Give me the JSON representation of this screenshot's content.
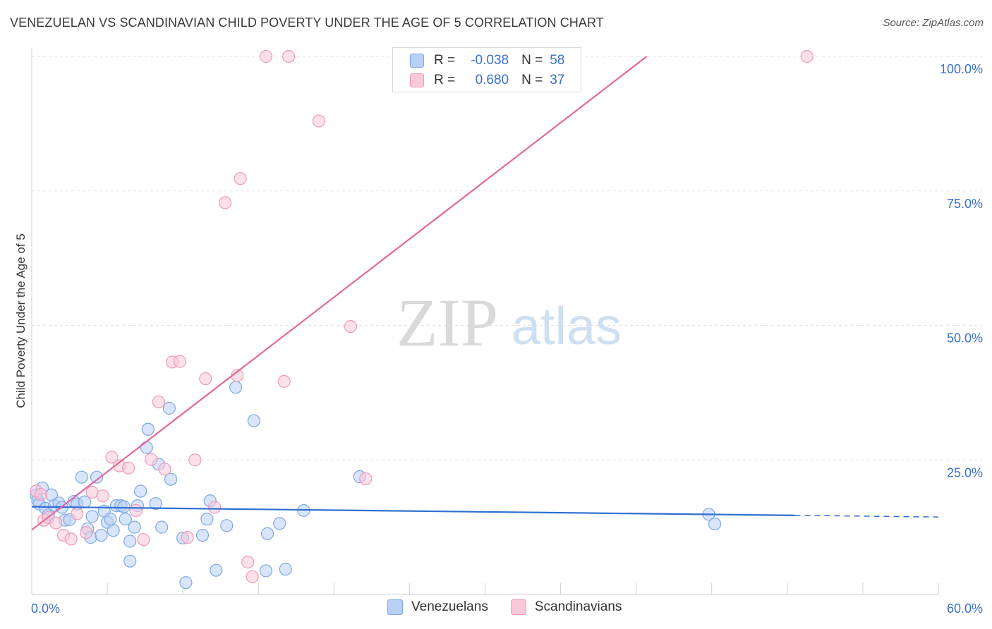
{
  "title": "VENEZUELAN VS SCANDINAVIAN CHILD POVERTY UNDER THE AGE OF 5 CORRELATION CHART",
  "source": "Source: ZipAtlas.com",
  "watermark": {
    "zip": "ZIP",
    "atlas": "atlas"
  },
  "legend": {
    "rows": [
      {
        "r_label": "R =",
        "r_value": "-0.038",
        "n_label": "N =",
        "n_value": "58"
      },
      {
        "r_label": "R =",
        "r_value": "0.680",
        "n_label": "N =",
        "n_value": "37"
      }
    ],
    "series_names": [
      "Venezuelans",
      "Scandinavians"
    ]
  },
  "colors": {
    "venezuelans_fill": "#b8d0f5",
    "venezuelans_stroke": "#7ea8e6",
    "venezuelans_line": "#2f6fd0",
    "scandinavians_fill": "#f9c9d8",
    "scandinavians_stroke": "#f09ab5",
    "scandinavians_line": "#e4689a",
    "axis_text": "#3b6fd0",
    "grid": "#e3e3e3"
  },
  "chart_data": {
    "type": "scatter",
    "title": "VENEZUELAN VS SCANDINAVIAN CHILD POVERTY UNDER THE AGE OF 5 CORRELATION CHART",
    "xlabel": "",
    "ylabel": "Child Poverty Under the Age of 5",
    "xlim": [
      0,
      60
    ],
    "ylim": [
      0,
      100
    ],
    "x_tick_labels": [
      "0.0%",
      "60.0%"
    ],
    "y_tick_labels": [
      "25.0%",
      "50.0%",
      "75.0%",
      "100.0%"
    ],
    "y_ticks": [
      25,
      50,
      75,
      100
    ],
    "grid": true,
    "legend_position": "top-center",
    "series": [
      {
        "name": "Venezuelans",
        "R": -0.038,
        "N": 58,
        "trend": {
          "x": [
            0,
            50.5
          ],
          "y": [
            16.3,
            14.7
          ],
          "dashed_extension_x": [
            50.5,
            60
          ],
          "dashed_extension_y": [
            14.7,
            14.4
          ]
        },
        "points": [
          [
            0.3,
            18.5
          ],
          [
            0.4,
            17.5
          ],
          [
            0.5,
            16.8
          ],
          [
            0.7,
            19.8
          ],
          [
            0.9,
            16.0
          ],
          [
            1.1,
            14.8
          ],
          [
            1.3,
            18.5
          ],
          [
            1.5,
            16.5
          ],
          [
            1.8,
            17.0
          ],
          [
            2.0,
            16.2
          ],
          [
            2.2,
            13.8
          ],
          [
            2.5,
            13.9
          ],
          [
            2.8,
            17.3
          ],
          [
            3.0,
            16.8
          ],
          [
            3.3,
            21.8
          ],
          [
            3.5,
            17.2
          ],
          [
            3.7,
            12.2
          ],
          [
            3.9,
            10.6
          ],
          [
            4.0,
            14.5
          ],
          [
            4.3,
            21.8
          ],
          [
            4.6,
            11.0
          ],
          [
            4.8,
            15.5
          ],
          [
            5.0,
            13.4
          ],
          [
            5.2,
            14.0
          ],
          [
            5.4,
            11.9
          ],
          [
            5.6,
            16.5
          ],
          [
            5.9,
            16.5
          ],
          [
            6.1,
            16.3
          ],
          [
            6.2,
            14.0
          ],
          [
            6.5,
            9.9
          ],
          [
            6.8,
            12.5
          ],
          [
            7.0,
            16.5
          ],
          [
            7.2,
            19.2
          ],
          [
            7.6,
            27.3
          ],
          [
            7.7,
            30.7
          ],
          [
            8.2,
            16.9
          ],
          [
            8.4,
            24.2
          ],
          [
            8.6,
            12.5
          ],
          [
            9.1,
            34.6
          ],
          [
            9.2,
            21.4
          ],
          [
            10.0,
            10.5
          ],
          [
            10.2,
            2.2
          ],
          [
            11.3,
            11.0
          ],
          [
            11.6,
            14.0
          ],
          [
            11.8,
            17.4
          ],
          [
            12.2,
            4.5
          ],
          [
            12.9,
            12.8
          ],
          [
            13.5,
            38.5
          ],
          [
            14.7,
            32.3
          ],
          [
            15.5,
            4.4
          ],
          [
            15.6,
            11.3
          ],
          [
            16.4,
            13.2
          ],
          [
            16.8,
            4.7
          ],
          [
            18.0,
            15.6
          ],
          [
            21.7,
            21.9
          ],
          [
            44.8,
            14.9
          ],
          [
            45.2,
            13.1
          ],
          [
            6.5,
            6.2
          ]
        ]
      },
      {
        "name": "Scandinavians",
        "R": 0.68,
        "N": 37,
        "trend": {
          "x": [
            0,
            40.7
          ],
          "y": [
            12.0,
            100
          ]
        },
        "points": [
          [
            0.3,
            19.2
          ],
          [
            0.6,
            18.6
          ],
          [
            0.8,
            13.8
          ],
          [
            1.1,
            14.3
          ],
          [
            1.6,
            13.3
          ],
          [
            2.1,
            11.0
          ],
          [
            2.6,
            10.3
          ],
          [
            3.0,
            15.0
          ],
          [
            3.6,
            11.5
          ],
          [
            4.0,
            19.0
          ],
          [
            4.7,
            18.3
          ],
          [
            5.3,
            25.5
          ],
          [
            5.8,
            23.9
          ],
          [
            6.4,
            23.5
          ],
          [
            6.9,
            15.6
          ],
          [
            7.4,
            10.2
          ],
          [
            7.9,
            25.1
          ],
          [
            8.4,
            35.8
          ],
          [
            8.8,
            23.3
          ],
          [
            9.3,
            43.2
          ],
          [
            9.8,
            43.3
          ],
          [
            10.3,
            10.6
          ],
          [
            10.8,
            25.0
          ],
          [
            11.5,
            40.1
          ],
          [
            12.1,
            16.2
          ],
          [
            12.8,
            72.8
          ],
          [
            13.6,
            40.7
          ],
          [
            13.8,
            77.3
          ],
          [
            14.3,
            6.0
          ],
          [
            14.6,
            3.3
          ],
          [
            15.5,
            100
          ],
          [
            16.7,
            39.6
          ],
          [
            17.0,
            100
          ],
          [
            19.0,
            88.0
          ],
          [
            21.1,
            49.8
          ],
          [
            22.1,
            21.5
          ],
          [
            51.3,
            100
          ]
        ]
      }
    ]
  }
}
